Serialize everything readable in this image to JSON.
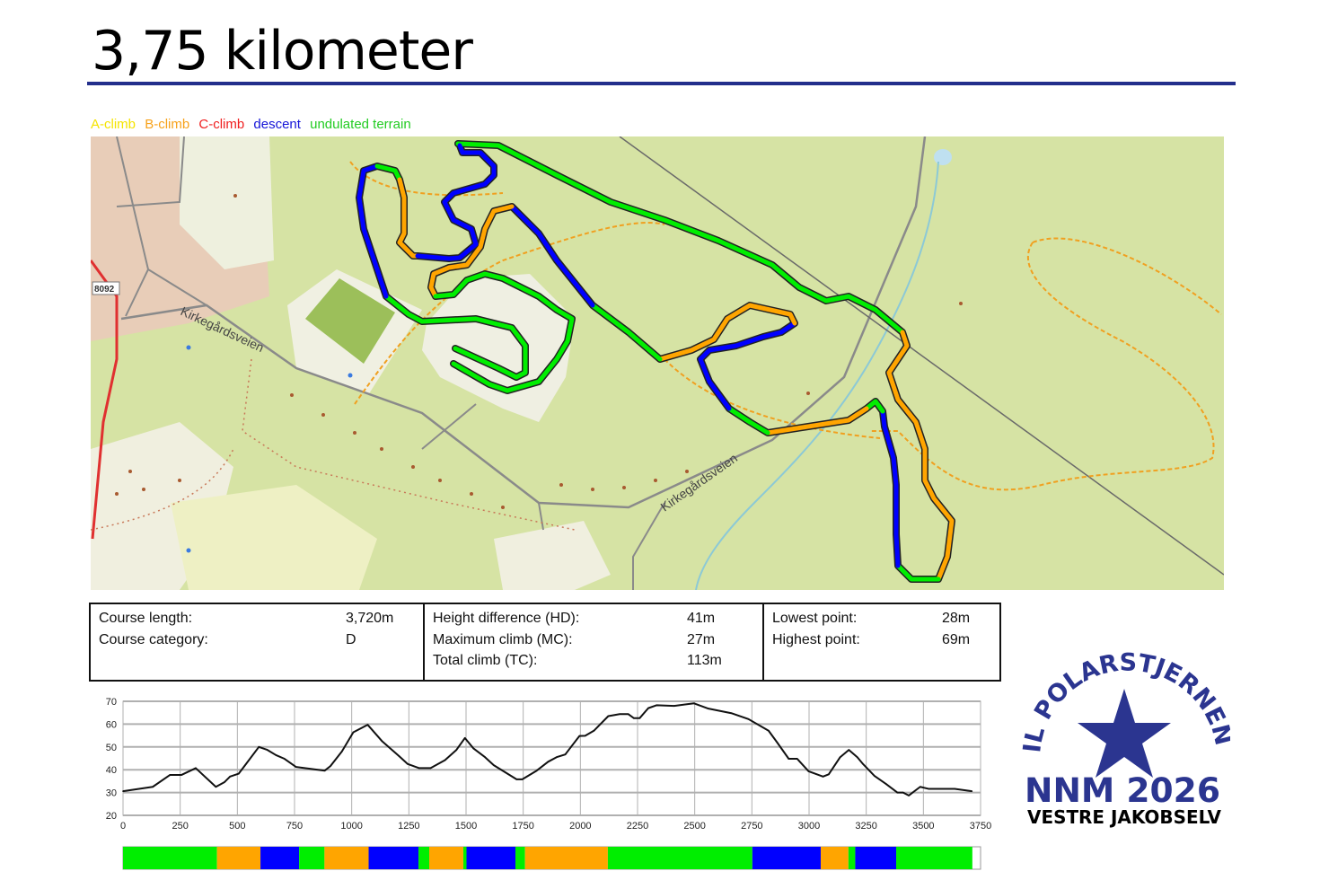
{
  "title": "3,75 kilometer",
  "legend": [
    {
      "label": "A-climb",
      "color": "#f5e400"
    },
    {
      "label": "B-climb",
      "color": "#f7a21b"
    },
    {
      "label": "C-climb",
      "color": "#f02020"
    },
    {
      "label": "descent",
      "color": "#1515d8"
    },
    {
      "label": "undulated terrain",
      "color": "#22cc22"
    }
  ],
  "map": {
    "road_labels": [
      "Kirkegårdsveien",
      "Kirkegårdsveien"
    ],
    "road_number": "8092",
    "route_colors": {
      "green": "#00ee00",
      "orange": "#ffa500",
      "blue": "#0000ff"
    }
  },
  "stats": {
    "course_length": {
      "label": "Course length:",
      "value": "3,720m"
    },
    "course_category": {
      "label": "Course category:",
      "value": "D"
    },
    "height_difference": {
      "label": "Height difference (HD):",
      "value": "41m"
    },
    "maximum_climb": {
      "label": "Maximum climb (MC):",
      "value": "27m"
    },
    "total_climb": {
      "label": "Total climb (TC):",
      "value": "113m"
    },
    "lowest_point": {
      "label": "Lowest point:",
      "value": "28m"
    },
    "highest_point": {
      "label": "Highest point:",
      "value": "69m"
    }
  },
  "chart_data": {
    "type": "line",
    "xlim": [
      0,
      3750
    ],
    "ylim": [
      20,
      70
    ],
    "grid": true,
    "x_ticks": [
      "0",
      "250",
      "500",
      "750",
      "1000",
      "1250",
      "1500",
      "1750",
      "2000",
      "2250",
      "2500",
      "2750",
      "3000",
      "3250",
      "3500",
      "3750"
    ],
    "y_ticks": [
      "20",
      "30",
      "40",
      "50",
      "60",
      "70"
    ],
    "x": [
      0,
      130,
      205,
      255,
      318,
      406,
      443,
      468,
      506,
      531,
      594,
      631,
      669,
      706,
      757,
      882,
      907,
      957,
      1007,
      1070,
      1132,
      1207,
      1245,
      1295,
      1345,
      1408,
      1458,
      1495,
      1533,
      1583,
      1621,
      1721,
      1746,
      1809,
      1859,
      1896,
      1934,
      1959,
      1996,
      2021,
      2059,
      2122,
      2172,
      2209,
      2234,
      2259,
      2297,
      2334,
      2410,
      2497,
      2560,
      2660,
      2735,
      2823,
      2861,
      2911,
      2948,
      2998,
      3061,
      3086,
      3136,
      3174,
      3211,
      3236,
      3286,
      3336,
      3386,
      3411,
      3436,
      3486,
      3524,
      3637,
      3712
    ],
    "y": [
      30.6,
      32.5,
      37.7,
      37.7,
      40.7,
      32.5,
      34.5,
      37,
      38.3,
      41.6,
      50,
      48.7,
      46.4,
      44.8,
      41.2,
      39.6,
      41.6,
      48,
      56.4,
      59.7,
      52.6,
      46,
      42.5,
      40.7,
      40.7,
      44.2,
      48.7,
      53.9,
      49.3,
      45.5,
      42,
      35.8,
      35.8,
      39.6,
      43.5,
      45.5,
      46.7,
      50,
      54.8,
      54.9,
      57.1,
      63.5,
      64.4,
      64.4,
      62.6,
      62.6,
      67,
      68.3,
      68,
      69.1,
      66.8,
      64.8,
      62.2,
      57.1,
      51.9,
      44.8,
      44.8,
      39.3,
      37,
      38,
      45.5,
      48.7,
      45.5,
      42.5,
      37.3,
      33.8,
      30,
      30,
      28.7,
      32.5,
      31.6,
      31.6,
      30.6
    ],
    "terrain_bar": [
      {
        "from": 0,
        "to": 411,
        "color": "#00ee00"
      },
      {
        "from": 411,
        "to": 601,
        "color": "#ffa500"
      },
      {
        "from": 601,
        "to": 770,
        "color": "#0000ff"
      },
      {
        "from": 770,
        "to": 881,
        "color": "#00ee00"
      },
      {
        "from": 881,
        "to": 1074,
        "color": "#ffa500"
      },
      {
        "from": 1074,
        "to": 1292,
        "color": "#0000ff"
      },
      {
        "from": 1292,
        "to": 1339,
        "color": "#00ee00"
      },
      {
        "from": 1339,
        "to": 1488,
        "color": "#ffa500"
      },
      {
        "from": 1488,
        "to": 1502,
        "color": "#00ee00"
      },
      {
        "from": 1502,
        "to": 1716,
        "color": "#0000ff"
      },
      {
        "from": 1716,
        "to": 1758,
        "color": "#00ee00"
      },
      {
        "from": 1758,
        "to": 2120,
        "color": "#ffa500"
      },
      {
        "from": 2120,
        "to": 2752,
        "color": "#00ee00"
      },
      {
        "from": 2752,
        "to": 3051,
        "color": "#0000ff"
      },
      {
        "from": 3051,
        "to": 3172,
        "color": "#ffa500"
      },
      {
        "from": 3172,
        "to": 3202,
        "color": "#00ee00"
      },
      {
        "from": 3202,
        "to": 3381,
        "color": "#0000ff"
      },
      {
        "from": 3381,
        "to": 3714,
        "color": "#00ee00"
      }
    ]
  },
  "logo": {
    "arc_text": "IL POLARSTJERNEN",
    "event": "NNM 2026",
    "place": "VESTRE JAKOBSELV",
    "color": "#2b3590"
  }
}
